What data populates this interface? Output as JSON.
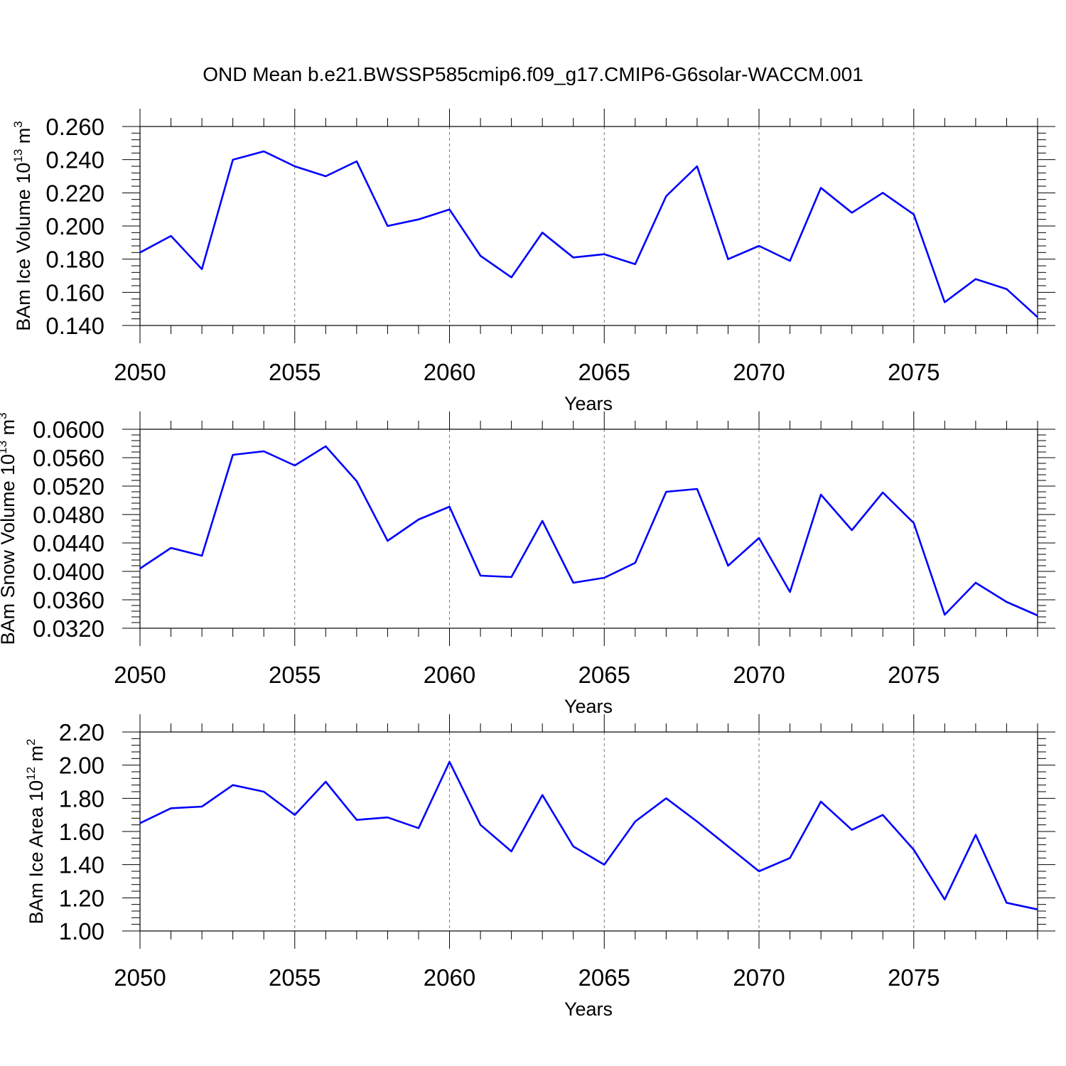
{
  "title": "OND Mean b.e21.BWSSP585cmip6.f09_g17.CMIP6-G6solar-WACCM.001",
  "line_color": "#0000ff",
  "chart_data": [
    {
      "type": "line",
      "ylabel_main": "BAm Ice Volume 10",
      "ylabel_exp": "13",
      "ylabel_unit": " m",
      "ylabel_unit_exp": "3",
      "xlabel": "Years",
      "xlim": [
        2050,
        2079
      ],
      "ylim": [
        0.14,
        0.26
      ],
      "grid": "vertical dashed at major x ticks",
      "x_ticks": [
        2050,
        2055,
        2060,
        2065,
        2070,
        2075
      ],
      "x_tick_labels": [
        "2050",
        "2055",
        "2060",
        "2065",
        "2070",
        "2075"
      ],
      "y_ticks": [
        0.14,
        0.16,
        0.18,
        0.2,
        0.22,
        0.24,
        0.26
      ],
      "y_tick_labels": [
        "0.140",
        "0.160",
        "0.180",
        "0.200",
        "0.220",
        "0.240",
        "0.260"
      ],
      "x": [
        2050,
        2051,
        2052,
        2053,
        2054,
        2055,
        2056,
        2057,
        2058,
        2059,
        2060,
        2061,
        2062,
        2063,
        2064,
        2065,
        2066,
        2067,
        2068,
        2069,
        2070,
        2071,
        2072,
        2073,
        2074,
        2075,
        2076,
        2077,
        2078,
        2079
      ],
      "values": [
        0.184,
        0.194,
        0.174,
        0.24,
        0.245,
        0.236,
        0.23,
        0.239,
        0.2,
        0.204,
        0.21,
        0.182,
        0.169,
        0.196,
        0.181,
        0.183,
        0.177,
        0.218,
        0.236,
        0.18,
        0.188,
        0.179,
        0.223,
        0.208,
        0.22,
        0.207,
        0.154,
        0.168,
        0.162,
        0.145
      ]
    },
    {
      "type": "line",
      "ylabel_main": "BAm Snow Volume 10",
      "ylabel_exp": "13",
      "ylabel_unit": " m",
      "ylabel_unit_exp": "3",
      "xlabel": "Years",
      "xlim": [
        2050,
        2079
      ],
      "ylim": [
        0.032,
        0.06
      ],
      "grid": "vertical dashed at major x ticks",
      "x_ticks": [
        2050,
        2055,
        2060,
        2065,
        2070,
        2075
      ],
      "x_tick_labels": [
        "2050",
        "2055",
        "2060",
        "2065",
        "2070",
        "2075"
      ],
      "y_ticks": [
        0.032,
        0.036,
        0.04,
        0.044,
        0.048,
        0.052,
        0.056,
        0.06
      ],
      "y_tick_labels": [
        "0.0320",
        "0.0360",
        "0.0400",
        "0.0440",
        "0.0480",
        "0.0520",
        "0.0560",
        "0.0600"
      ],
      "x": [
        2050,
        2051,
        2052,
        2053,
        2054,
        2055,
        2056,
        2057,
        2058,
        2059,
        2060,
        2061,
        2062,
        2063,
        2064,
        2065,
        2066,
        2067,
        2068,
        2069,
        2070,
        2071,
        2072,
        2073,
        2074,
        2075,
        2076,
        2077,
        2078,
        2079
      ],
      "values": [
        0.0404,
        0.0433,
        0.0422,
        0.0564,
        0.0569,
        0.0549,
        0.0576,
        0.0527,
        0.0443,
        0.0473,
        0.0491,
        0.0394,
        0.0392,
        0.0471,
        0.0384,
        0.0391,
        0.0412,
        0.0512,
        0.0516,
        0.0408,
        0.0447,
        0.0371,
        0.0508,
        0.0458,
        0.0511,
        0.0468,
        0.0339,
        0.0384,
        0.0357,
        0.0338
      ]
    },
    {
      "type": "line",
      "ylabel_main": "BAm Ice Area 10",
      "ylabel_exp": "12",
      "ylabel_unit": " m",
      "ylabel_unit_exp": "2",
      "xlabel": "Years",
      "xlim": [
        2050,
        2079
      ],
      "ylim": [
        1.0,
        2.2
      ],
      "grid": "vertical dashed at major x ticks",
      "x_ticks": [
        2050,
        2055,
        2060,
        2065,
        2070,
        2075
      ],
      "x_tick_labels": [
        "2050",
        "2055",
        "2060",
        "2065",
        "2070",
        "2075"
      ],
      "y_ticks": [
        1.0,
        1.2,
        1.4,
        1.6,
        1.8,
        2.0,
        2.2
      ],
      "y_tick_labels": [
        "1.00",
        "1.20",
        "1.40",
        "1.60",
        "1.80",
        "2.00",
        "2.20"
      ],
      "x": [
        2050,
        2051,
        2052,
        2053,
        2054,
        2055,
        2056,
        2057,
        2058,
        2059,
        2060,
        2061,
        2062,
        2063,
        2064,
        2065,
        2066,
        2067,
        2068,
        2069,
        2070,
        2071,
        2072,
        2073,
        2074,
        2075,
        2076,
        2077,
        2078,
        2079
      ],
      "values": [
        1.65,
        1.74,
        1.75,
        1.88,
        1.84,
        1.7,
        1.9,
        1.67,
        1.685,
        1.62,
        2.02,
        1.64,
        1.48,
        1.82,
        1.51,
        1.4,
        1.66,
        1.8,
        1.66,
        1.51,
        1.36,
        1.44,
        1.78,
        1.61,
        1.7,
        1.49,
        1.19,
        1.58,
        1.17,
        1.13
      ]
    }
  ]
}
